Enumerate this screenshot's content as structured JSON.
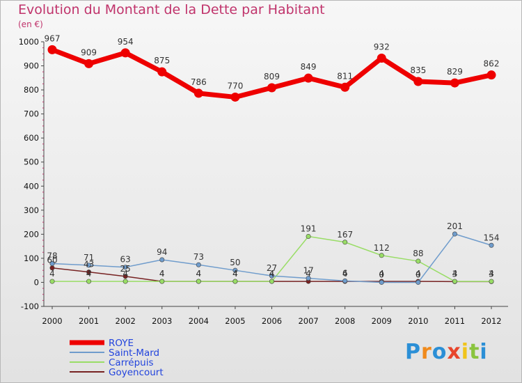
{
  "chart_data": {
    "type": "line",
    "title": "Evolution du Montant de la Dette par Habitant",
    "subtitle": "(en €)",
    "xlabel": "",
    "ylabel": "",
    "x": [
      "2000",
      "2001",
      "2002",
      "2003",
      "2004",
      "2005",
      "2006",
      "2007",
      "2008",
      "2009",
      "2010",
      "2011",
      "2012"
    ],
    "ylim": [
      -100,
      1000
    ],
    "yticks": [
      -100,
      0,
      100,
      200,
      300,
      400,
      500,
      600,
      700,
      800,
      900,
      1000
    ],
    "grid": false,
    "legend_position": "bottom-left",
    "series": [
      {
        "name": "ROYE",
        "color": "#ee0000",
        "values": [
          967,
          909,
          954,
          875,
          786,
          770,
          809,
          849,
          811,
          932,
          835,
          829,
          862
        ],
        "labels": [
          "967",
          "909",
          "954",
          "875",
          "786",
          "770",
          "809",
          "849",
          "811",
          "932",
          "835",
          "829",
          "862"
        ]
      },
      {
        "name": "Saint-Mard",
        "color": "#6f9ccc",
        "values": [
          78,
          71,
          63,
          94,
          73,
          50,
          27,
          17,
          6,
          0,
          0,
          201,
          154
        ],
        "labels": [
          "78",
          "71",
          "63",
          "94",
          "73",
          "50",
          "27",
          "17",
          "6",
          "0",
          "0",
          "201",
          "154"
        ]
      },
      {
        "name": "Carrépuis",
        "color": "#99dd66",
        "values": [
          4,
          4,
          4,
          4,
          4,
          4,
          4,
          191,
          167,
          112,
          88,
          4,
          4
        ],
        "labels": [
          "4",
          "4",
          "4",
          "4",
          "4",
          "4",
          "4",
          "191",
          "167",
          "112",
          "88",
          "4",
          "4"
        ]
      },
      {
        "name": "Goyencourt",
        "color": "#772222",
        "values": [
          60,
          43,
          25,
          4,
          4,
          4,
          4,
          4,
          4,
          4,
          4,
          3,
          3
        ],
        "labels": [
          "60",
          "43",
          "25",
          "4",
          "4",
          "4",
          "4",
          "4",
          "4",
          "4",
          "4",
          "3",
          "3"
        ]
      }
    ]
  },
  "branding": {
    "logo_text": "Proxiti",
    "logo_colors": [
      "#2b8fd6",
      "#f08a1c",
      "#2b8fd6",
      "#e8452c",
      "#f0c41c",
      "#8ac43f",
      "#2b8fd6"
    ]
  }
}
